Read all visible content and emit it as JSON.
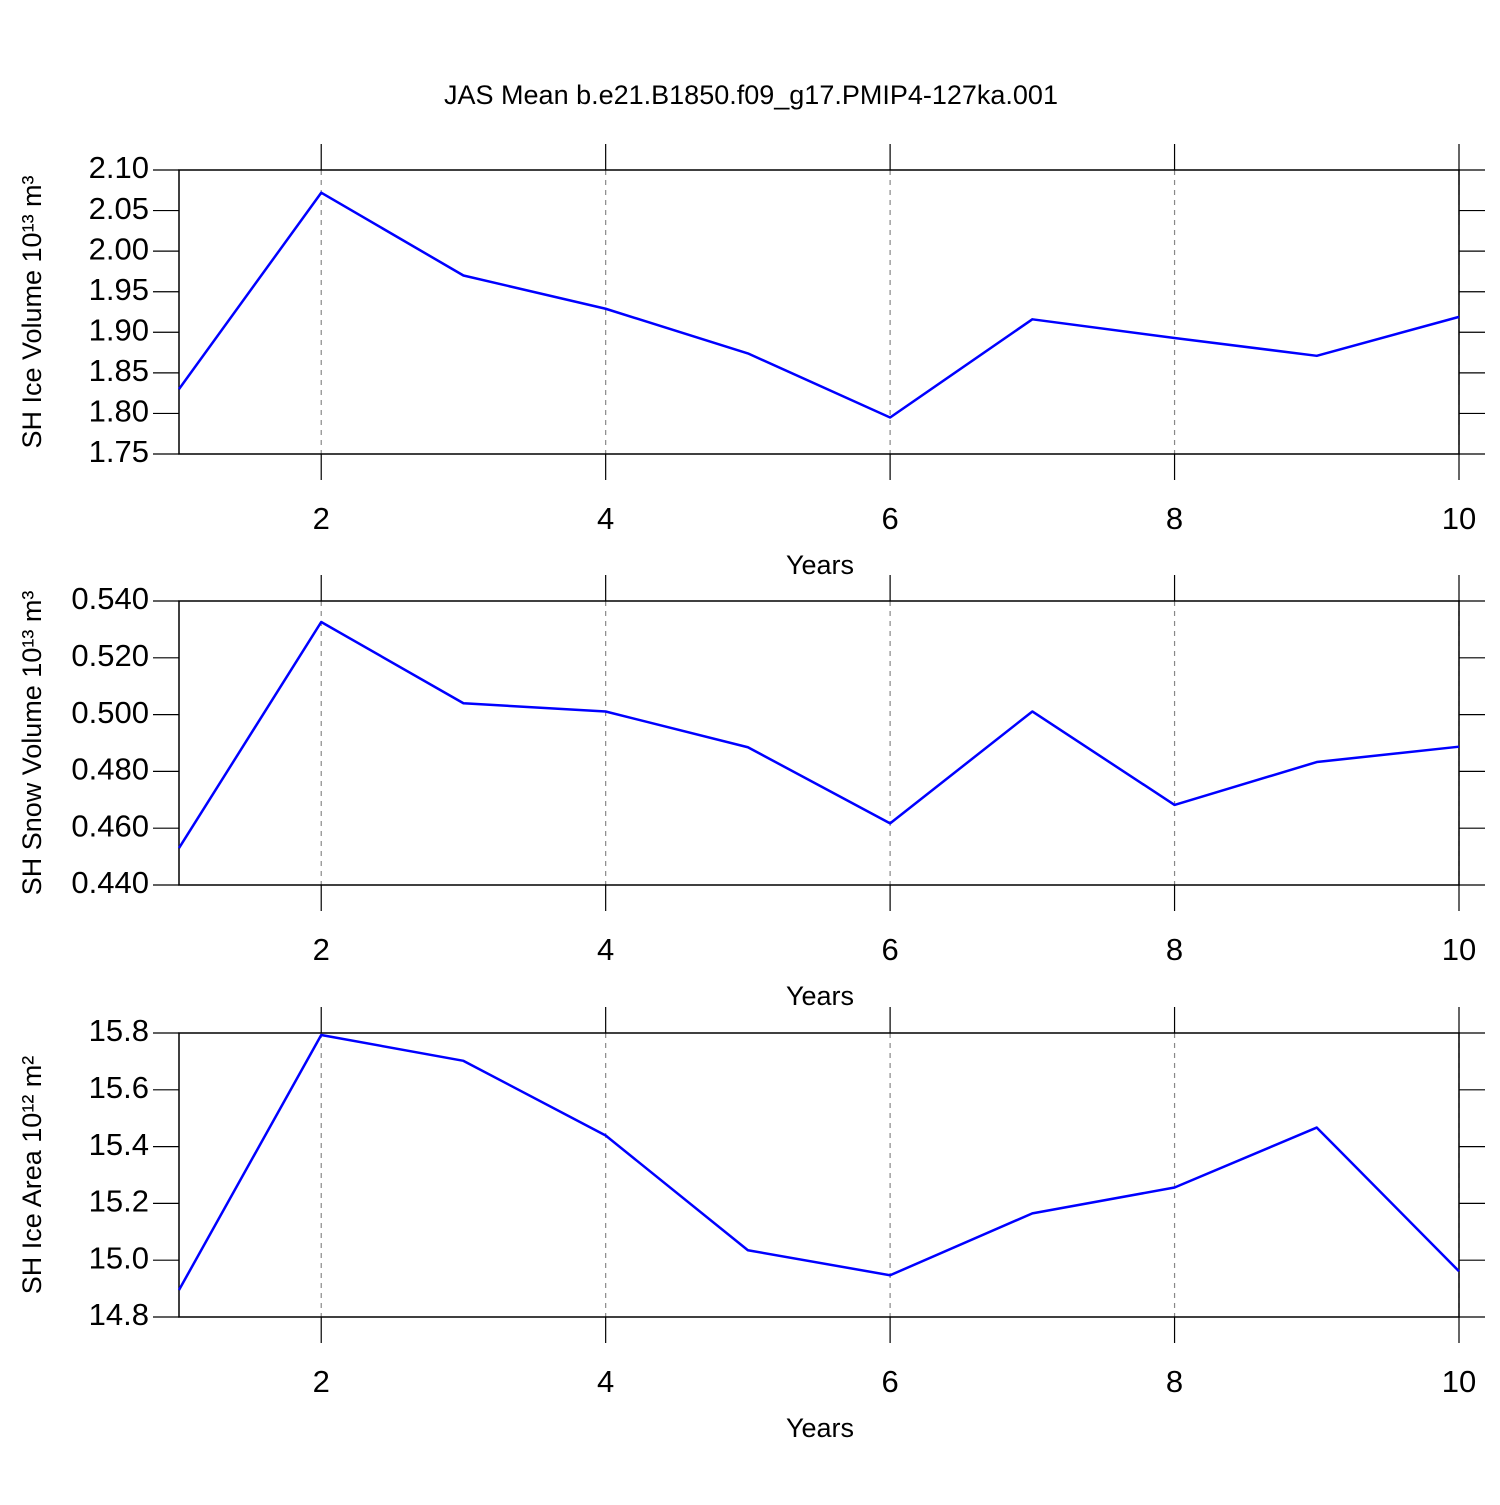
{
  "chart_data": [
    {
      "type": "line",
      "title": "JAS Mean b.e21.B1850.f09_g17.PMIP4-127ka.001",
      "xlabel": "Years",
      "ylabel": "SH Ice Volume 10¹³ m³",
      "x": [
        1,
        2,
        3,
        4,
        5,
        6,
        7,
        8,
        9,
        10
      ],
      "series": [
        {
          "color": "#0000ff",
          "values": [
            1.83,
            2.072,
            1.97,
            1.929,
            1.874,
            1.795,
            1.916,
            1.893,
            1.871,
            1.919
          ]
        }
      ],
      "xlim": [
        1,
        10
      ],
      "xticks": [
        2,
        4,
        6,
        8,
        10
      ],
      "ylim": [
        1.75,
        2.1
      ],
      "yticks": [
        1.75,
        {
          "value": 1.8,
          "label": "1.80"
        },
        1.85,
        {
          "value": 1.9,
          "label": "1.90"
        },
        1.95,
        {
          "value": 2.0,
          "label": "2.00"
        },
        2.05,
        {
          "value": 2.1,
          "label": "2.10"
        }
      ],
      "grid": "x"
    },
    {
      "type": "line",
      "xlabel": "Years",
      "ylabel": "SH Snow Volume 10¹³ m³",
      "x": [
        1,
        2,
        3,
        4,
        5,
        6,
        7,
        8,
        9,
        10
      ],
      "series": [
        {
          "color": "#0000ff",
          "values": [
            0.453,
            0.5326,
            0.504,
            0.5011,
            0.4885,
            0.4617,
            0.5011,
            0.4682,
            0.4833,
            0.4887
          ]
        }
      ],
      "xlim": [
        1,
        10
      ],
      "xticks": [
        2,
        4,
        6,
        8,
        10
      ],
      "ylim": [
        0.44,
        0.54
      ],
      "yticks": [
        {
          "value": 0.44,
          "label": "0.440"
        },
        {
          "value": 0.46,
          "label": "0.460"
        },
        {
          "value": 0.48,
          "label": "0.480"
        },
        {
          "value": 0.5,
          "label": "0.500"
        },
        {
          "value": 0.52,
          "label": "0.520"
        },
        {
          "value": 0.54,
          "label": "0.540"
        }
      ],
      "grid": "x"
    },
    {
      "type": "line",
      "xlabel": "Years",
      "ylabel": "SH Ice Area 10¹² m²",
      "x": [
        1,
        2,
        3,
        4,
        5,
        6,
        7,
        8,
        9,
        10
      ],
      "series": [
        {
          "color": "#0000ff",
          "values": [
            14.895,
            15.793,
            15.702,
            15.439,
            15.035,
            14.947,
            15.165,
            15.256,
            15.467,
            14.961
          ]
        }
      ],
      "xlim": [
        1,
        10
      ],
      "xticks": [
        2,
        4,
        6,
        8,
        10
      ],
      "ylim": [
        14.8,
        15.8
      ],
      "yticks": [
        14.8,
        {
          "value": 15.0,
          "label": "15.0"
        },
        15.2,
        15.4,
        15.6,
        15.8
      ],
      "grid": "x"
    }
  ]
}
